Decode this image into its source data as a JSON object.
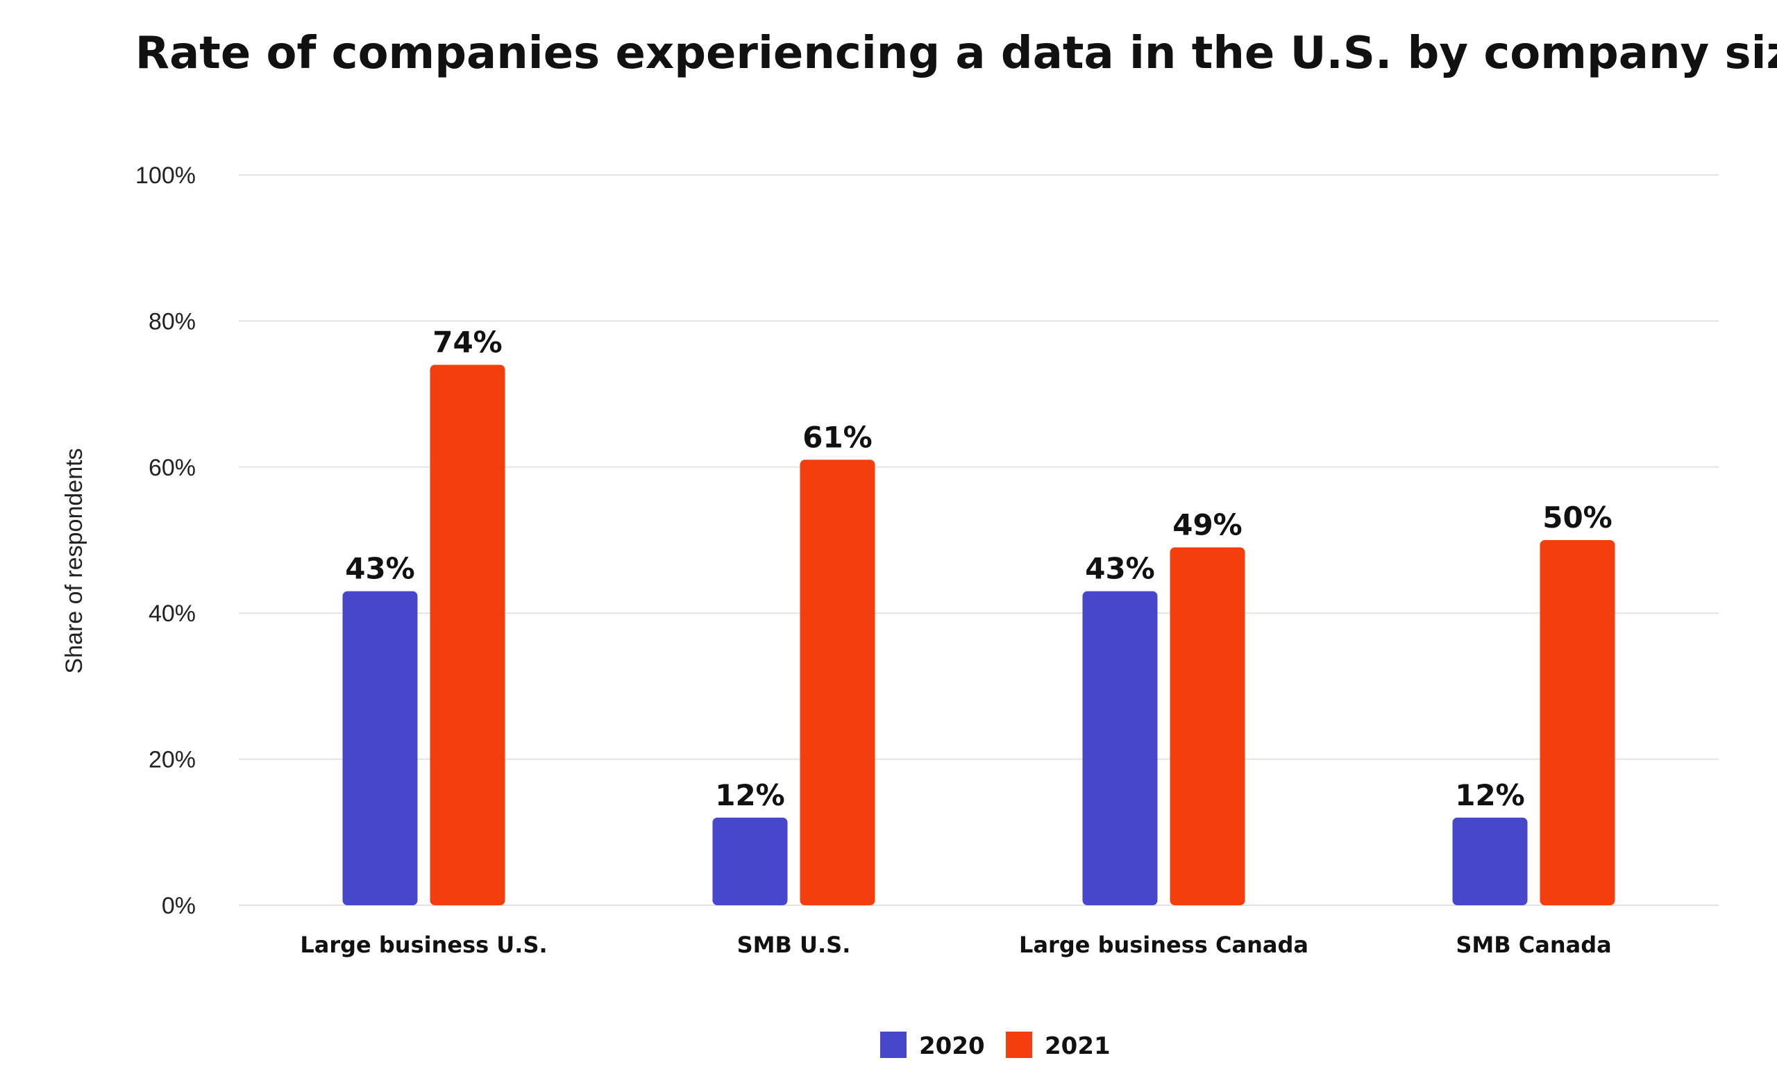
{
  "chart_data": {
    "type": "bar",
    "title": "Rate of companies experiencing a data in the U.S. by company size",
    "xlabel": "",
    "ylabel": "Share of respondents",
    "ylim": [
      0,
      100
    ],
    "yticks": [
      0,
      20,
      40,
      60,
      80,
      100
    ],
    "ytick_labels": [
      "0%",
      "20%",
      "40%",
      "60%",
      "80%",
      "100%"
    ],
    "grid": true,
    "legend_position": "bottom-center",
    "categories": [
      "Large  business U.S.",
      "SMB U.S.",
      "Large  business Canada",
      "SMB Canada"
    ],
    "series": [
      {
        "name": "2020",
        "color": "#4747cc",
        "values": [
          43,
          12,
          43,
          12
        ],
        "labels": [
          "43%",
          "12%",
          "43%",
          "12%"
        ]
      },
      {
        "name": "2021",
        "color": "#f53e0e",
        "values": [
          74,
          61,
          49,
          50
        ],
        "labels": [
          "74%",
          "61%",
          "49%",
          "50%"
        ]
      }
    ]
  }
}
